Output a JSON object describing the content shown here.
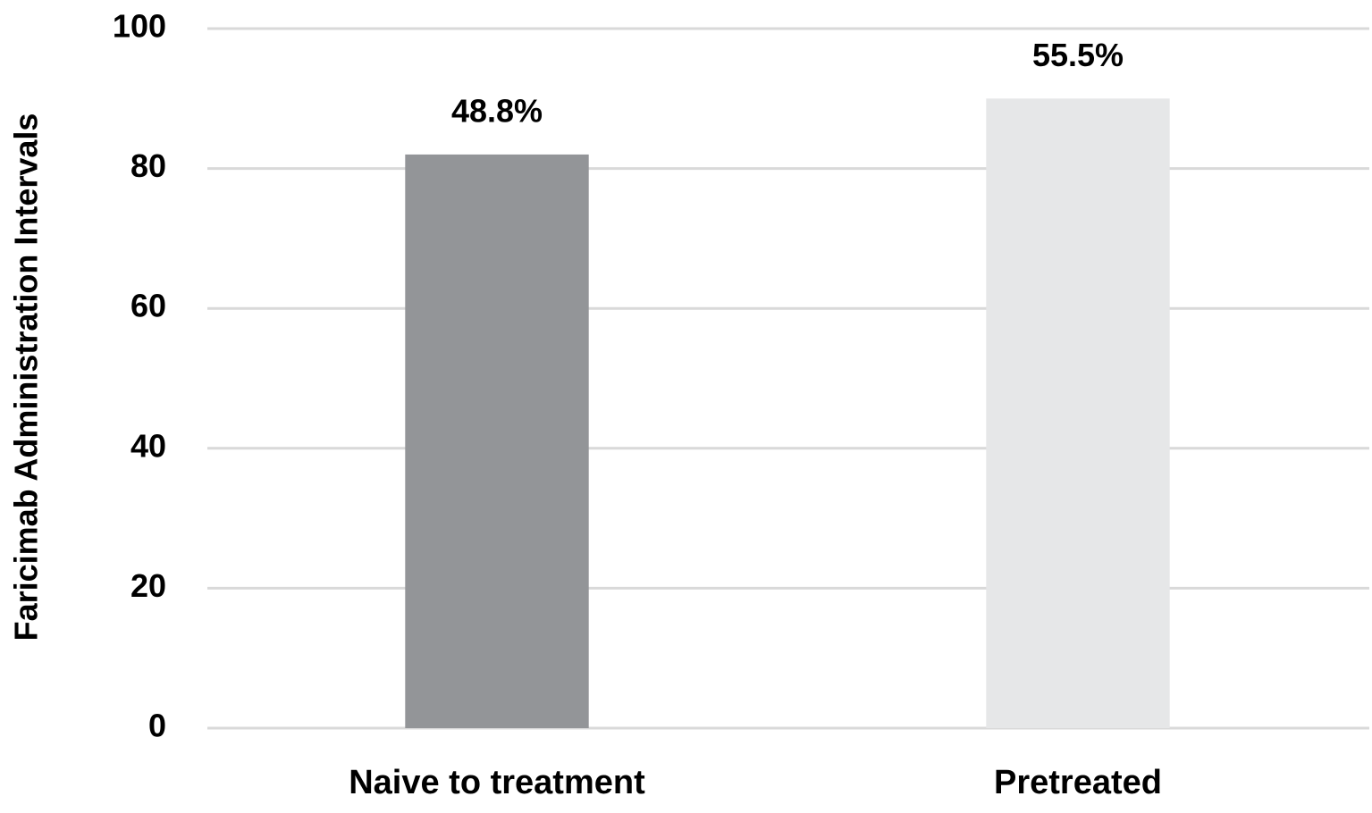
{
  "chart_data": {
    "type": "bar",
    "y_label": "Faricimab Administration Intervals",
    "categories": [
      "Naive to treatment",
      "Pretreated"
    ],
    "values": [
      82,
      90
    ],
    "colors": [
      "#939598",
      "#e6e7e8"
    ],
    "annotations": [
      "48.8%",
      "55.5%"
    ],
    "ylim": [
      0,
      100
    ],
    "yticks": [
      0,
      20,
      40,
      60,
      80,
      100
    ],
    "grid": true
  }
}
